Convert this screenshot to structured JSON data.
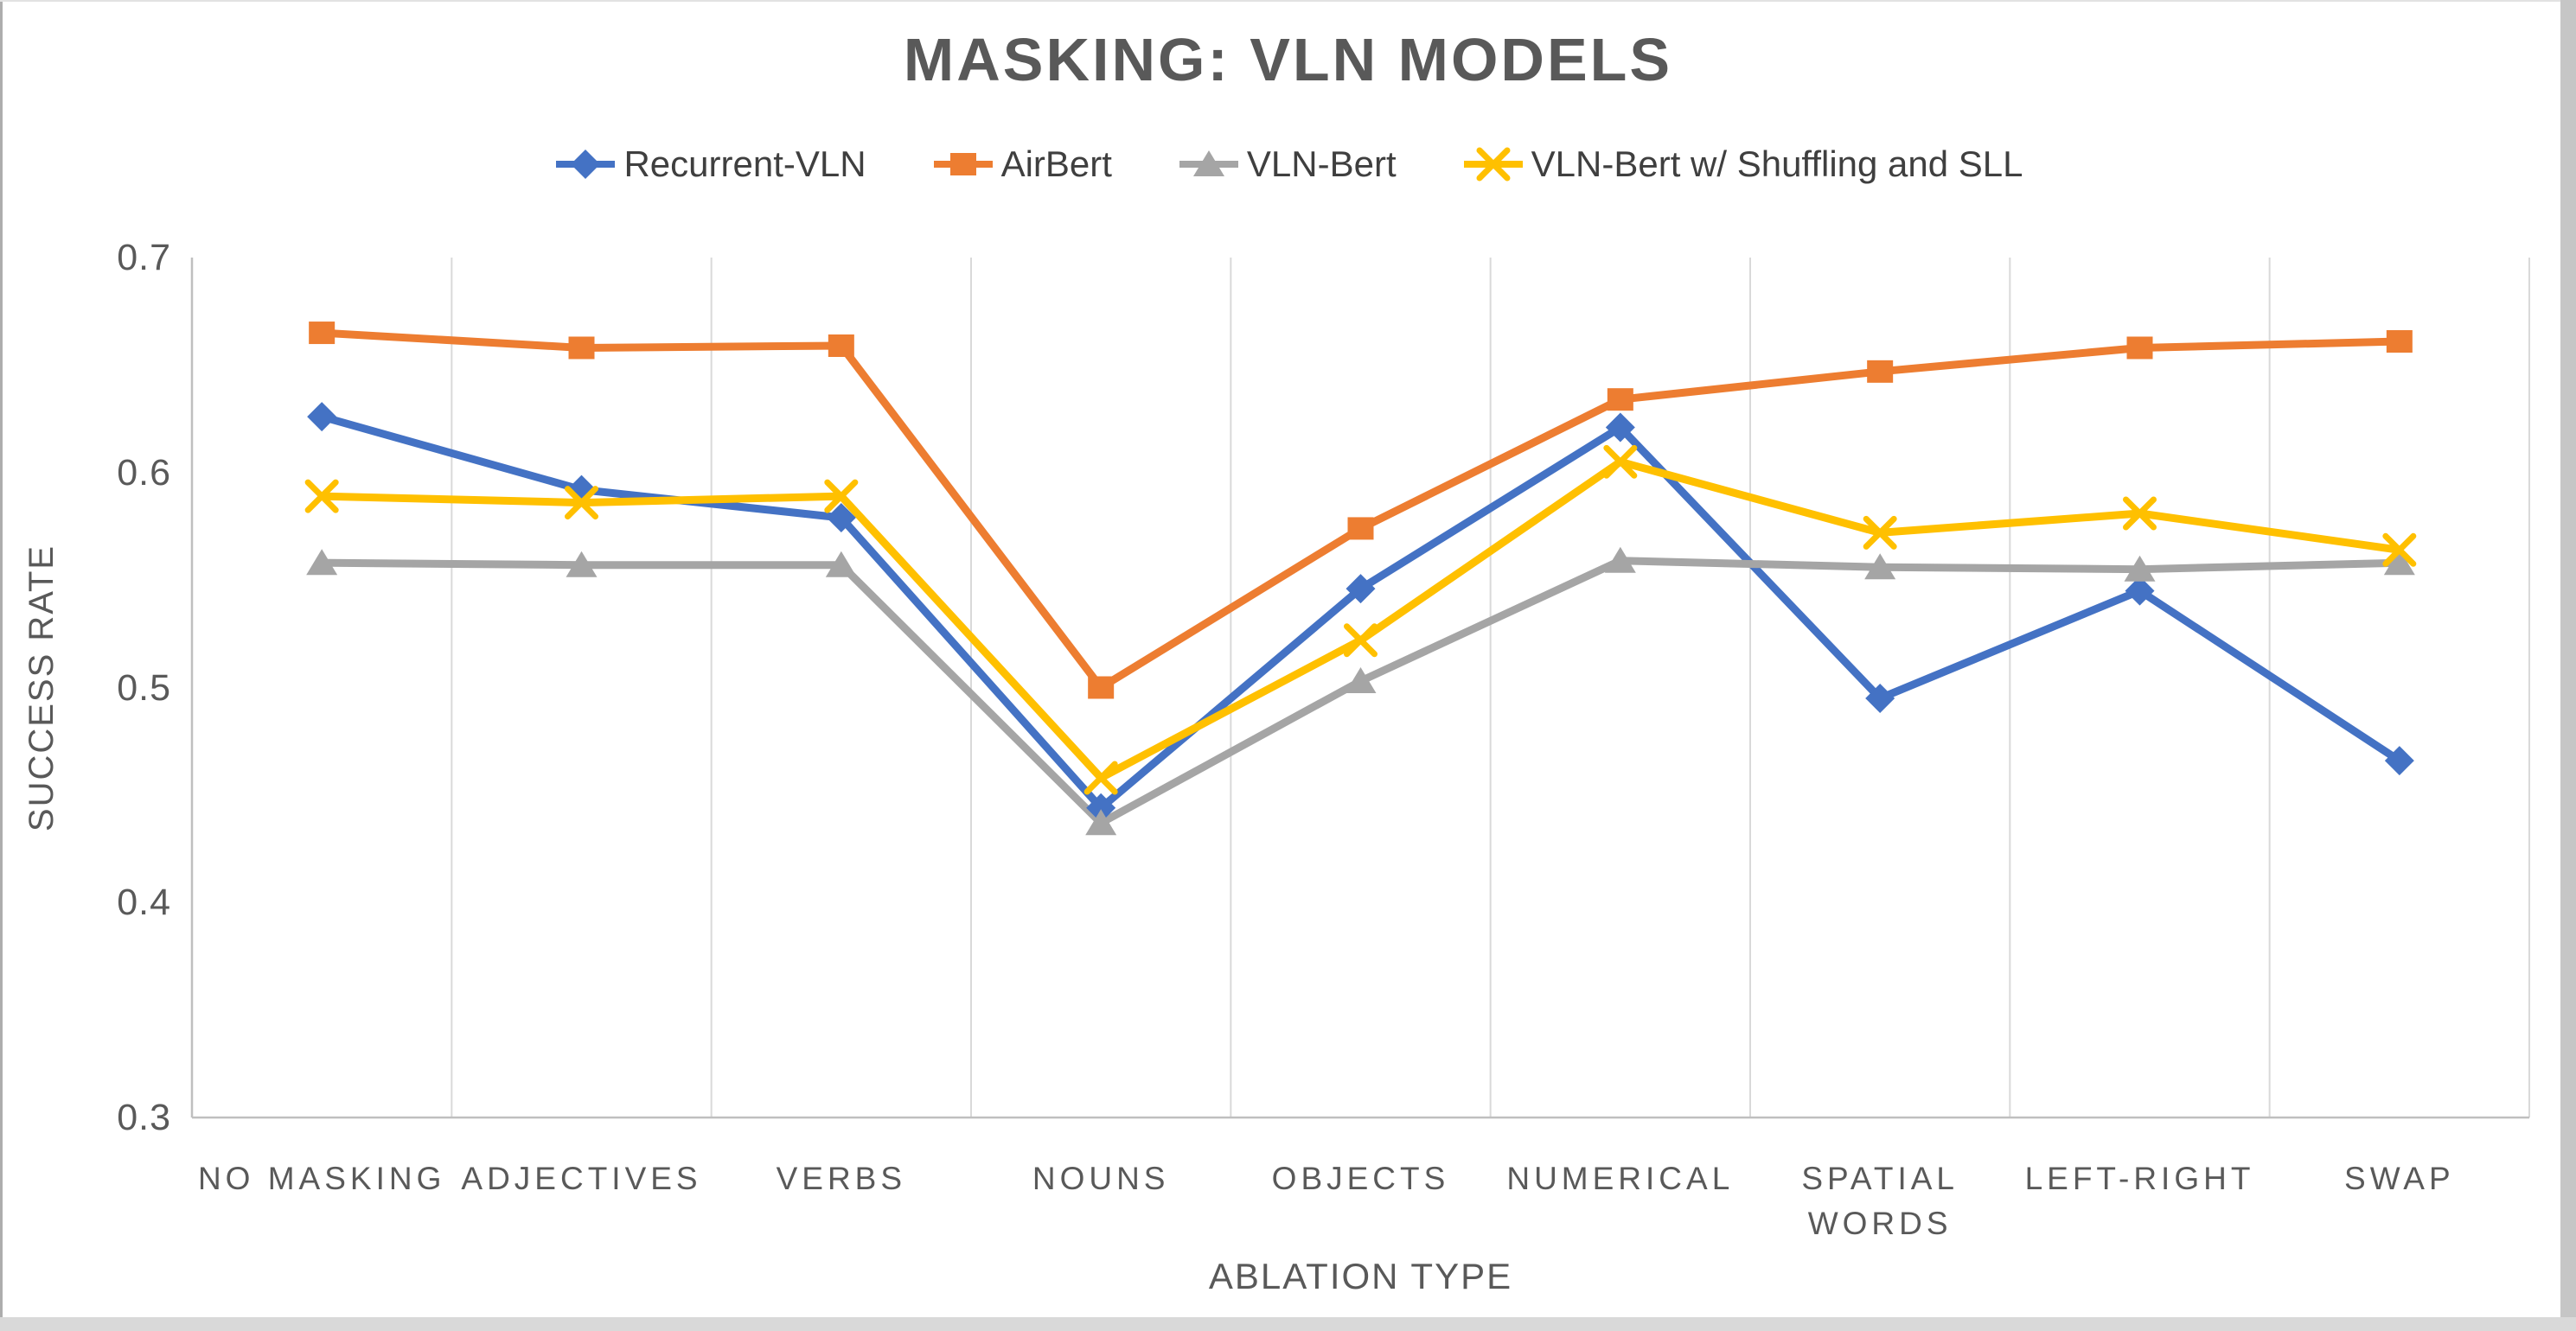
{
  "chart_data": {
    "type": "line",
    "title": "MASKING: VLN MODELS",
    "xlabel": "ABLATION TYPE",
    "ylabel": "SUCCESS RATE",
    "ylim": [
      0.3,
      0.7
    ],
    "yticks": [
      0.7,
      0.6,
      0.5,
      0.4,
      0.3
    ],
    "grid": "vertical-category-gridlines",
    "legend_position": "top",
    "categories": [
      "NO MASKING",
      "ADJECTIVES",
      "VERBS",
      "NOUNS",
      "OBJECTS",
      "NUMERICAL",
      "SPATIAL WORDS",
      "LEFT-RIGHT",
      "SWAP"
    ],
    "series": [
      {
        "name": "Recurrent-VLN",
        "color": "#4472C4",
        "marker": "diamond",
        "values": [
          0.626,
          0.592,
          0.579,
          0.444,
          0.546,
          0.621,
          0.495,
          0.545,
          0.466
        ]
      },
      {
        "name": "AirBert",
        "color": "#ED7D31",
        "marker": "square",
        "values": [
          0.665,
          0.658,
          0.659,
          0.5,
          0.574,
          0.634,
          0.647,
          0.658,
          0.661
        ]
      },
      {
        "name": "VLN-Bert",
        "color": "#A5A5A5",
        "marker": "triangle",
        "values": [
          0.558,
          0.557,
          0.557,
          0.437,
          0.503,
          0.559,
          0.556,
          0.555,
          0.558
        ]
      },
      {
        "name": "VLN-Bert w/ Shuffling and SLL",
        "color": "#FFC000",
        "marker": "x",
        "values": [
          0.589,
          0.586,
          0.589,
          0.458,
          0.522,
          0.605,
          0.572,
          0.581,
          0.564
        ]
      }
    ],
    "colors": {
      "gridline": "#D9D9D9",
      "axis_line": "#BFBFBF",
      "title_text": "#595959",
      "tick_text": "#595959",
      "legend_text": "#3F3F3F"
    }
  }
}
